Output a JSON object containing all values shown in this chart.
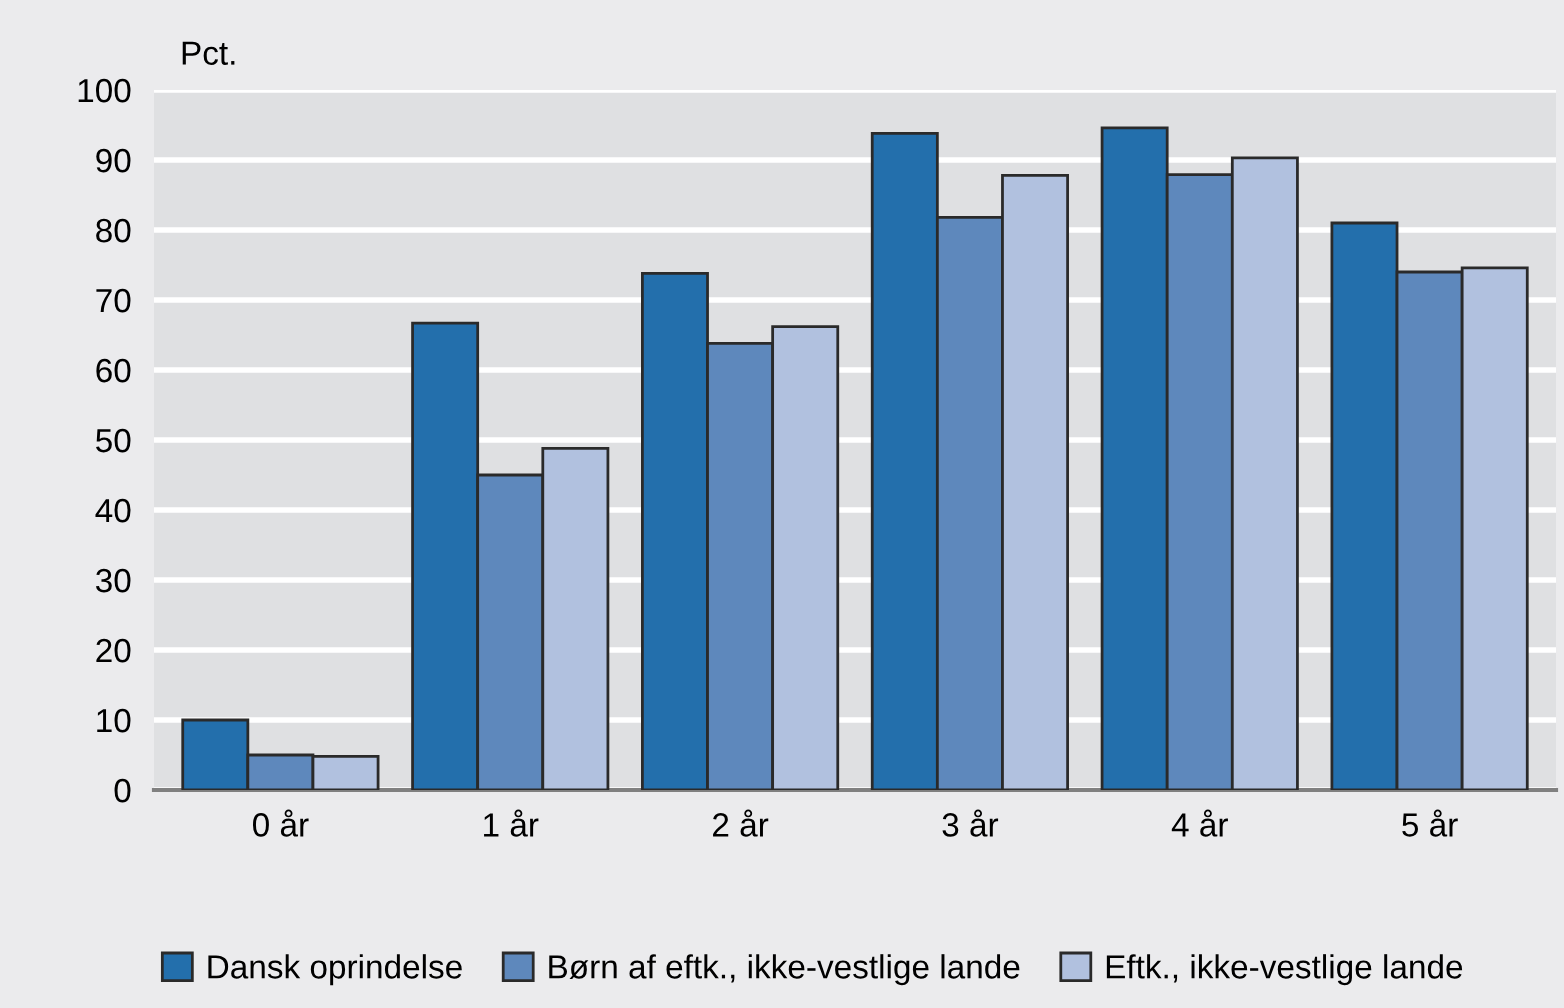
{
  "chart_data": {
    "type": "bar",
    "ylabel": "Pct.",
    "categories": [
      "0 år",
      "1 år",
      "2 år",
      "3 år",
      "4 år",
      "5 år"
    ],
    "series": [
      {
        "name": "Dansk oprindelse",
        "color": "#236fac",
        "values": [
          10,
          66.7,
          73.8,
          93.8,
          94.6,
          81.0
        ]
      },
      {
        "name": "Børn af eftk., ikke-vestlige lande",
        "color": "#5e88bc",
        "values": [
          5,
          45.0,
          63.8,
          81.8,
          87.9,
          74.0
        ]
      },
      {
        "name": "Eftk., ikke-vestlige lande",
        "color": "#b1c1df",
        "values": [
          4.8,
          48.8,
          66.2,
          87.8,
          90.3,
          74.6
        ]
      }
    ],
    "ylim": [
      0,
      100
    ],
    "yticks": [
      0,
      10,
      20,
      30,
      40,
      50,
      60,
      70,
      80,
      90,
      100
    ],
    "grid": "y",
    "legend": "bottom"
  }
}
